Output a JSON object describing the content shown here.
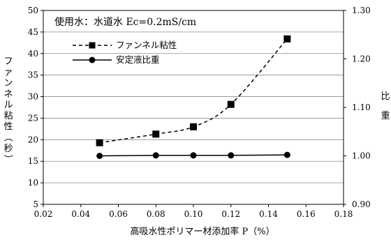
{
  "chart_data": {
    "type": "line",
    "annotation": "使用水：水道水 Ec=0.2mS/cm",
    "xlabel": "高吸水性ポリマー材添加率 P（%）",
    "ylabel_left": "ファンネル粘性（秒）",
    "ylabel_right": "比重",
    "x_ticks": [
      "0.02",
      "0.04",
      "0.06",
      "0.08",
      "0.10",
      "0.12",
      "0.14",
      "0.16",
      "0.18"
    ],
    "y_left_ticks": [
      "5",
      "10",
      "15",
      "20",
      "25",
      "30",
      "35",
      "40",
      "45",
      "50"
    ],
    "y_right_ticks": [
      "0.90",
      "1.00",
      "1.10",
      "1.20",
      "1.30"
    ],
    "xlim": [
      0.02,
      0.18
    ],
    "ylim_left": [
      5,
      50
    ],
    "ylim_right": [
      0.9,
      1.3
    ],
    "grid": "horizontal",
    "legend_position": "top-left",
    "series": [
      {
        "name": "ファンネル粘性",
        "axis": "left",
        "line_style": "dashed",
        "marker": "square",
        "x": [
          0.05,
          0.08,
          0.1,
          0.12,
          0.15
        ],
        "y": [
          19.3,
          21.3,
          23.0,
          28.2,
          43.4
        ]
      },
      {
        "name": "安定液比重",
        "axis": "right",
        "line_style": "solid",
        "marker": "circle",
        "x": [
          0.05,
          0.08,
          0.1,
          0.12,
          0.15
        ],
        "y": [
          1.0,
          1.001,
          1.001,
          1.001,
          1.002
        ]
      }
    ]
  }
}
